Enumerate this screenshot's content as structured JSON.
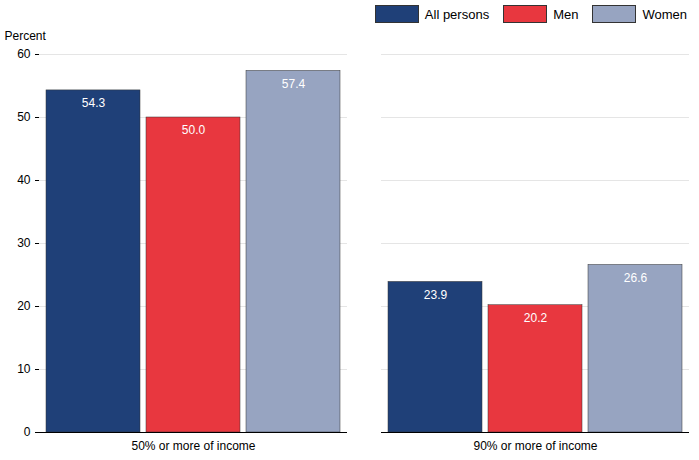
{
  "chart_data": {
    "type": "bar",
    "y_label": "Percent",
    "categories": [
      "50% or more of income",
      "90% or more of income"
    ],
    "series": [
      {
        "name": "All persons",
        "color": "#1f4078",
        "values": [
          54.3,
          23.9
        ],
        "value_labels": [
          "54.3",
          "23.9"
        ]
      },
      {
        "name": "Men",
        "color": "#e8373f",
        "values": [
          50.0,
          20.2
        ],
        "value_labels": [
          "50.0",
          "20.2"
        ]
      },
      {
        "name": "Women",
        "color": "#97a4c1",
        "values": [
          57.4,
          26.6
        ],
        "value_labels": [
          "57.4",
          "26.6"
        ]
      }
    ],
    "ylim": [
      0,
      60
    ],
    "yticks": [
      0,
      10,
      20,
      30,
      40,
      50,
      60
    ],
    "grid": true,
    "data_labels": true,
    "legend": "top-right"
  }
}
